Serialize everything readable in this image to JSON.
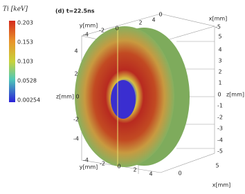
{
  "colorbar": {
    "title": "Ti [keV]",
    "ticks": [
      0.203,
      0.153,
      0.103,
      0.0528,
      0.00254
    ]
  },
  "panel_label": "(d) t=22.5ns",
  "axes": {
    "top_y_label": "y[mm]",
    "top_y_ticks": [
      -4,
      -2,
      0,
      2,
      4
    ],
    "top_x_label": "x[mm]",
    "top_x_ticks": [
      0,
      -5
    ],
    "right_z_label": "z[mm]",
    "right_z_ticks": [
      5,
      4,
      3,
      2,
      1,
      0,
      -1,
      -2,
      -3,
      -4,
      -5
    ],
    "left_z_label": "z[mm]",
    "left_z_ticks": [
      4,
      2,
      0,
      -2,
      -4
    ],
    "bottom_y_label": "y[mm]",
    "bottom_y_ticks": [
      -4,
      -2,
      0,
      2,
      4
    ],
    "bottom_x_label": "x[mm]",
    "bottom_x_ticks": [
      0,
      5
    ]
  }
}
